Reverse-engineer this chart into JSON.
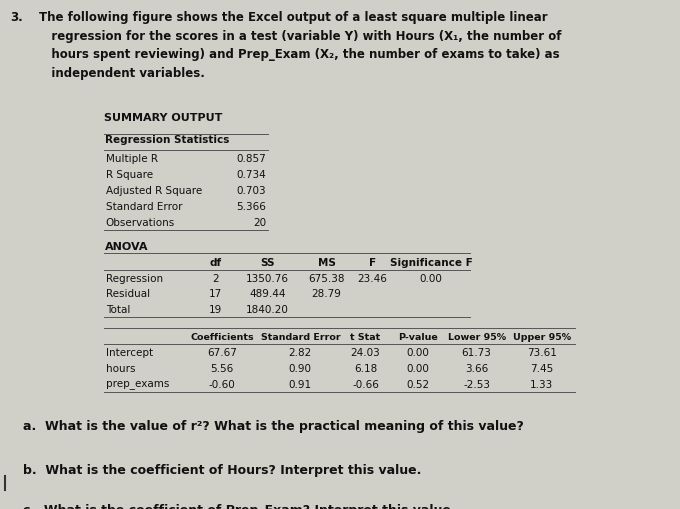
{
  "background_color": "#d0cfc8",
  "title_number": "3.",
  "title_text": "The following figure shows the Excel output of a least square multiple linear\n   regression for the scores in a test (variable Y) with Hours (X₁, the number of\n   hours spent reviewing) and Prep_Exam (X₂, the number of exams to take) as\n   independent variables.",
  "summary_output_label": "SUMMARY OUTPUT",
  "reg_stats_label": "Regression Statistics",
  "reg_stats_rows": [
    [
      "Multiple R",
      "0.857"
    ],
    [
      "R Square",
      "0.734"
    ],
    [
      "Adjusted R Square",
      "0.703"
    ],
    [
      "Standard Error",
      "5.366"
    ],
    [
      "Observations",
      "20"
    ]
  ],
  "anova_label": "ANOVA",
  "anova_header": [
    "df",
    "SS",
    "MS",
    "F",
    "Significance F"
  ],
  "anova_rows": [
    [
      "Regression",
      "2",
      "1350.76",
      "675.38",
      "23.46",
      "0.00"
    ],
    [
      "Residual",
      "17",
      "489.44",
      "28.79",
      "",
      ""
    ],
    [
      "Total",
      "19",
      "1840.20",
      "",
      "",
      ""
    ]
  ],
  "coef_header": [
    "Coefficients",
    "Standard Error",
    "t Stat",
    "P-value",
    "Lower 95%",
    "Upper 95%"
  ],
  "coef_rows": [
    [
      "Intercept",
      "67.67",
      "2.82",
      "24.03",
      "0.00",
      "61.73",
      "73.61"
    ],
    [
      "hours",
      "5.56",
      "0.90",
      "6.18",
      "0.00",
      "3.66",
      "7.45"
    ],
    [
      "prep_exams",
      "-0.60",
      "0.91",
      "-0.66",
      "0.52",
      "-2.53",
      "1.33"
    ]
  ],
  "question_a": "a.  What is the value of r²? What is the practical meaning of this value?",
  "question_b": "b.  What is the coefficient of Hours? Interpret this value.",
  "question_c": "c.  What is the coefficient of Prep_Exam? Interpret this value.",
  "table_bg": "#e8e6de",
  "header_bg": "#c8c6be",
  "text_color": "#111111"
}
